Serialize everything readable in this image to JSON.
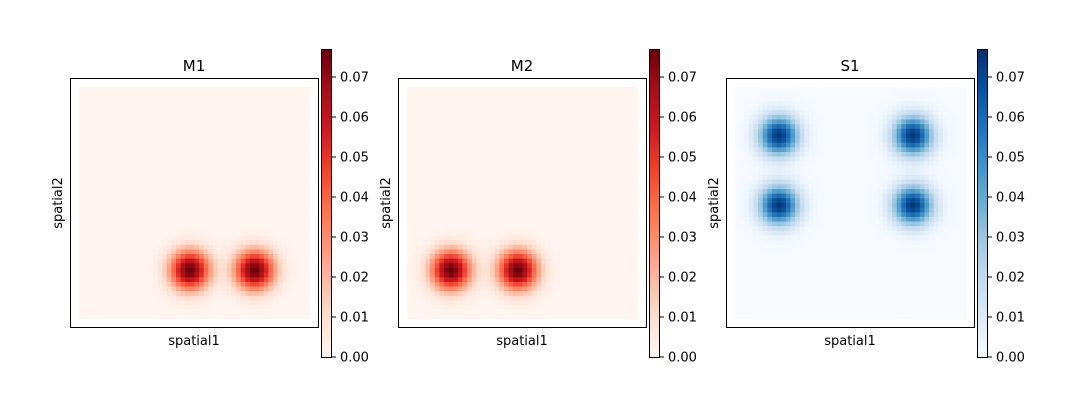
{
  "chart_data": [
    {
      "type": "heatmap",
      "title": "M1",
      "xlabel": "spatial1",
      "ylabel": "spatial2",
      "colormap": "Reds",
      "colorbar": {
        "min": 0.0,
        "max": 0.077,
        "ticks": [
          "0.00",
          "0.01",
          "0.02",
          "0.03",
          "0.04",
          "0.05",
          "0.06",
          "0.07"
        ]
      },
      "grid": false,
      "spots": [
        {
          "x": 0.48,
          "y": 0.21,
          "peak": 0.077,
          "sigma": 0.06
        },
        {
          "x": 0.76,
          "y": 0.21,
          "peak": 0.077,
          "sigma": 0.06
        }
      ]
    },
    {
      "type": "heatmap",
      "title": "M2",
      "xlabel": "spatial1",
      "ylabel": "spatial2",
      "colormap": "Reds",
      "colorbar": {
        "min": 0.0,
        "max": 0.077,
        "ticks": [
          "0.00",
          "0.01",
          "0.02",
          "0.03",
          "0.04",
          "0.05",
          "0.06",
          "0.07"
        ]
      },
      "grid": false,
      "spots": [
        {
          "x": 0.19,
          "y": 0.21,
          "peak": 0.077,
          "sigma": 0.06
        },
        {
          "x": 0.48,
          "y": 0.21,
          "peak": 0.077,
          "sigma": 0.06
        }
      ]
    },
    {
      "type": "heatmap",
      "title": "S1",
      "xlabel": "spatial1",
      "ylabel": "spatial2",
      "colormap": "Blues",
      "colorbar": {
        "min": 0.0,
        "max": 0.077,
        "ticks": [
          "0.00",
          "0.01",
          "0.02",
          "0.03",
          "0.04",
          "0.05",
          "0.06",
          "0.07"
        ]
      },
      "grid": false,
      "spots": [
        {
          "x": 0.19,
          "y": 0.79,
          "peak": 0.075,
          "sigma": 0.06
        },
        {
          "x": 0.77,
          "y": 0.79,
          "peak": 0.075,
          "sigma": 0.06
        },
        {
          "x": 0.19,
          "y": 0.49,
          "peak": 0.075,
          "sigma": 0.06
        },
        {
          "x": 0.77,
          "y": 0.49,
          "peak": 0.075,
          "sigma": 0.06
        }
      ]
    }
  ]
}
